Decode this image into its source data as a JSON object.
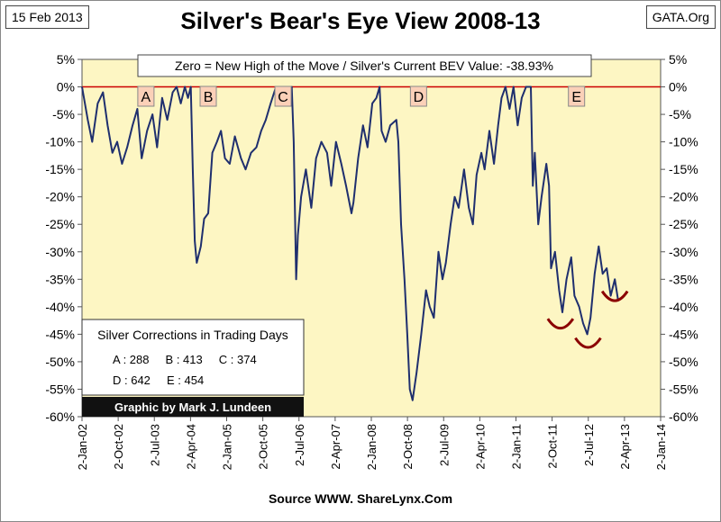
{
  "header": {
    "date": "15 Feb 2013",
    "site": "GATA.Org",
    "title": "Silver's Bear's Eye View 2008-13"
  },
  "footer": {
    "source": "Source WWW. ShareLynx.Com"
  },
  "colors": {
    "plot_bg": "#fdf6c3",
    "line": "#1f2f6e",
    "zero_line": "#cc0000",
    "marker_bg": "#fbd0b8",
    "arc": "#8b0000",
    "credit_bg": "#111111"
  },
  "chart_data": {
    "type": "line",
    "title": "Silver's Bear's Eye View 2008-13",
    "subtitle": "Zero = New High of the Move / Silver's Current BEV Value: -38.93%",
    "xlabel": "",
    "ylabel": "",
    "ylim": [
      -60,
      5
    ],
    "y_ticks": [
      "5%",
      "0%",
      "-5%",
      "-10%",
      "-15%",
      "-20%",
      "-25%",
      "-30%",
      "-35%",
      "-40%",
      "-45%",
      "-50%",
      "-55%",
      "-60%"
    ],
    "x_ticks": [
      "2-Jan-02",
      "2-Oct-02",
      "2-Jul-03",
      "2-Apr-04",
      "2-Jan-05",
      "2-Oct-05",
      "2-Jul-06",
      "2-Apr-07",
      "2-Jan-08",
      "2-Oct-08",
      "2-Jul-09",
      "2-Apr-10",
      "2-Jan-11",
      "2-Oct-11",
      "2-Jul-12",
      "2-Apr-13",
      "2-Jan-14"
    ],
    "grid": false,
    "series": [
      {
        "name": "Silver BEV",
        "points": [
          [
            "2002-01-02",
            0
          ],
          [
            "2002-02-15",
            -6
          ],
          [
            "2002-03-20",
            -10
          ],
          [
            "2002-05-01",
            -3
          ],
          [
            "2002-06-10",
            -1
          ],
          [
            "2002-07-15",
            -7
          ],
          [
            "2002-08-20",
            -12
          ],
          [
            "2002-09-25",
            -10
          ],
          [
            "2002-11-01",
            -14
          ],
          [
            "2002-12-10",
            -11
          ],
          [
            "2003-01-20",
            -7
          ],
          [
            "2003-02-25",
            -4
          ],
          [
            "2003-03-30",
            -13
          ],
          [
            "2003-05-10",
            -8
          ],
          [
            "2003-06-20",
            -5
          ],
          [
            "2003-07-25",
            -11
          ],
          [
            "2003-09-01",
            -2
          ],
          [
            "2003-10-10",
            -6
          ],
          [
            "2003-11-20",
            -1
          ],
          [
            "2003-12-20",
            0
          ],
          [
            "2004-01-20",
            -3
          ],
          [
            "2004-02-20",
            0
          ],
          [
            "2004-03-15",
            -2
          ],
          [
            "2004-04-05",
            0
          ],
          [
            "2004-04-20",
            -15
          ],
          [
            "2004-05-05",
            -28
          ],
          [
            "2004-05-20",
            -32
          ],
          [
            "2004-06-20",
            -29
          ],
          [
            "2004-07-15",
            -24
          ],
          [
            "2004-08-15",
            -23
          ],
          [
            "2004-09-15",
            -12
          ],
          [
            "2004-10-20",
            -10
          ],
          [
            "2004-11-20",
            -8
          ],
          [
            "2004-12-20",
            -13
          ],
          [
            "2005-01-25",
            -14
          ],
          [
            "2005-03-05",
            -9
          ],
          [
            "2005-04-20",
            -13
          ],
          [
            "2005-05-25",
            -15
          ],
          [
            "2005-07-05",
            -12
          ],
          [
            "2005-08-15",
            -11
          ],
          [
            "2005-09-20",
            -8
          ],
          [
            "2005-10-25",
            -6
          ],
          [
            "2005-12-01",
            -3
          ],
          [
            "2006-01-10",
            0
          ],
          [
            "2006-02-20",
            -2
          ],
          [
            "2006-03-25",
            0
          ],
          [
            "2006-05-10",
            0
          ],
          [
            "2006-05-25",
            -10
          ],
          [
            "2006-06-12",
            -35
          ],
          [
            "2006-06-25",
            -27
          ],
          [
            "2006-07-20",
            -20
          ],
          [
            "2006-08-25",
            -15
          ],
          [
            "2006-10-05",
            -22
          ],
          [
            "2006-11-10",
            -13
          ],
          [
            "2006-12-20",
            -10
          ],
          [
            "2007-02-01",
            -12
          ],
          [
            "2007-03-05",
            -18
          ],
          [
            "2007-04-10",
            -10
          ],
          [
            "2007-05-20",
            -14
          ],
          [
            "2007-06-25",
            -18
          ],
          [
            "2007-08-05",
            -23
          ],
          [
            "2007-08-20",
            -21
          ],
          [
            "2007-09-25",
            -13
          ],
          [
            "2007-11-01",
            -7
          ],
          [
            "2007-12-05",
            -11
          ],
          [
            "2008-01-10",
            -3
          ],
          [
            "2008-02-10",
            -2
          ],
          [
            "2008-03-05",
            0
          ],
          [
            "2008-03-20",
            -8
          ],
          [
            "2008-04-20",
            -10
          ],
          [
            "2008-05-25",
            -7
          ],
          [
            "2008-07-10",
            -6
          ],
          [
            "2008-07-25",
            -10
          ],
          [
            "2008-08-15",
            -25
          ],
          [
            "2008-09-10",
            -35
          ],
          [
            "2008-10-01",
            -45
          ],
          [
            "2008-10-20",
            -55
          ],
          [
            "2008-11-10",
            -57
          ],
          [
            "2008-12-10",
            -52
          ],
          [
            "2009-01-15",
            -45
          ],
          [
            "2009-02-20",
            -37
          ],
          [
            "2009-03-20",
            -40
          ],
          [
            "2009-04-20",
            -42
          ],
          [
            "2009-05-25",
            -30
          ],
          [
            "2009-06-25",
            -35
          ],
          [
            "2009-07-20",
            -32
          ],
          [
            "2009-08-25",
            -25
          ],
          [
            "2009-09-25",
            -20
          ],
          [
            "2009-10-25",
            -22
          ],
          [
            "2009-12-05",
            -15
          ],
          [
            "2010-01-10",
            -22
          ],
          [
            "2010-02-10",
            -25
          ],
          [
            "2010-03-10",
            -16
          ],
          [
            "2010-04-15",
            -12
          ],
          [
            "2010-05-10",
            -15
          ],
          [
            "2010-06-15",
            -8
          ],
          [
            "2010-07-20",
            -14
          ],
          [
            "2010-08-20",
            -7
          ],
          [
            "2010-09-15",
            -2
          ],
          [
            "2010-10-15",
            0
          ],
          [
            "2010-11-15",
            -4
          ],
          [
            "2010-12-15",
            0
          ],
          [
            "2011-01-15",
            -7
          ],
          [
            "2011-02-15",
            -2
          ],
          [
            "2011-03-20",
            0
          ],
          [
            "2011-04-25",
            0
          ],
          [
            "2011-05-10",
            -18
          ],
          [
            "2011-05-25",
            -12
          ],
          [
            "2011-06-20",
            -25
          ],
          [
            "2011-07-15",
            -20
          ],
          [
            "2011-08-20",
            -14
          ],
          [
            "2011-09-10",
            -18
          ],
          [
            "2011-09-25",
            -33
          ],
          [
            "2011-10-25",
            -30
          ],
          [
            "2011-11-25",
            -37
          ],
          [
            "2011-12-20",
            -41
          ],
          [
            "2012-01-20",
            -35
          ],
          [
            "2012-02-25",
            -31
          ],
          [
            "2012-03-20",
            -38
          ],
          [
            "2012-04-25",
            -40
          ],
          [
            "2012-05-25",
            -43
          ],
          [
            "2012-06-25",
            -45
          ],
          [
            "2012-07-20",
            -42
          ],
          [
            "2012-08-20",
            -34
          ],
          [
            "2012-09-20",
            -29
          ],
          [
            "2012-10-20",
            -34
          ],
          [
            "2012-11-20",
            -33
          ],
          [
            "2012-12-20",
            -38
          ],
          [
            "2013-01-20",
            -35
          ],
          [
            "2013-02-15",
            -39
          ]
        ]
      }
    ],
    "zero_line": 0,
    "markers": [
      {
        "label": "A",
        "date": "2003-05-01"
      },
      {
        "label": "B",
        "date": "2004-08-15"
      },
      {
        "label": "C",
        "date": "2006-03-05"
      },
      {
        "label": "D",
        "date": "2008-12-25"
      },
      {
        "label": "E",
        "date": "2012-04-05"
      }
    ],
    "arcs": [
      {
        "date": "2011-12-05",
        "value": -43
      },
      {
        "date": "2012-07-01",
        "value": -46.5
      },
      {
        "date": "2013-01-20",
        "value": -38
      }
    ],
    "corrections_box": {
      "title": "Silver Corrections in Trading Days",
      "rows": [
        "A : 288     B : 413     C : 374",
        "D : 642     E : 454"
      ]
    },
    "credit": "Graphic by Mark J. Lundeen"
  }
}
